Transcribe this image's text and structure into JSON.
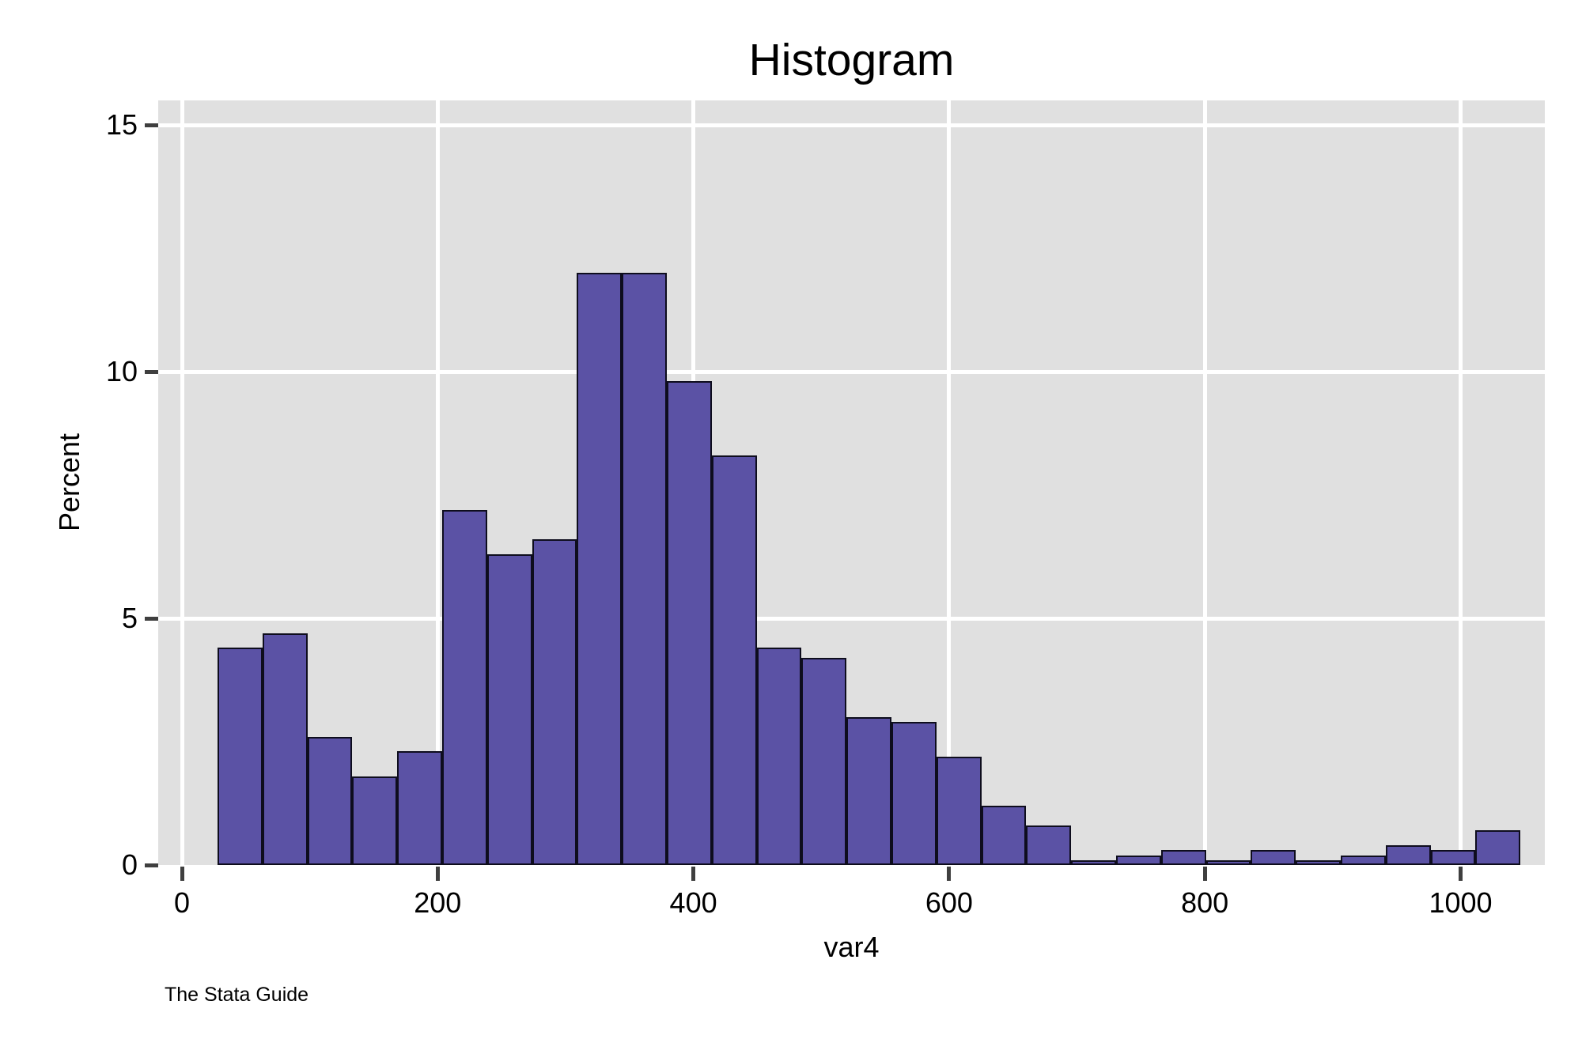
{
  "chart_data": {
    "type": "bar",
    "subtype": "histogram",
    "title": "Histogram",
    "xlabel": "var4",
    "ylabel": "Percent",
    "source_note": "The Stata Guide",
    "bin_start": 27.8,
    "bin_width": 35.14,
    "values": [
      4.4,
      4.7,
      2.6,
      1.8,
      2.3,
      7.2,
      6.3,
      6.6,
      12,
      12,
      9.8,
      8.3,
      4.4,
      4.2,
      3.0,
      2.9,
      2.2,
      1.2,
      0.8,
      0.1,
      0.2,
      0.3,
      0.1,
      0.3,
      0.1,
      0.2,
      0.4,
      0.3,
      0.7
    ],
    "x_ticks": [
      0,
      200,
      400,
      600,
      800,
      1000
    ],
    "y_ticks": [
      0,
      5,
      10,
      15
    ],
    "xlim": [
      -18.6,
      1066
    ],
    "ylim": [
      0,
      15.5
    ],
    "grid": true,
    "legend": false,
    "colors": {
      "bar_fill": "#5b52a5",
      "bar_border": "#0e0d1d",
      "plot_bg": "#e0e0e0",
      "gridline": "#ffffff",
      "tick": "#3f3f3f",
      "text": "#000000",
      "background": "#ffffff"
    }
  }
}
